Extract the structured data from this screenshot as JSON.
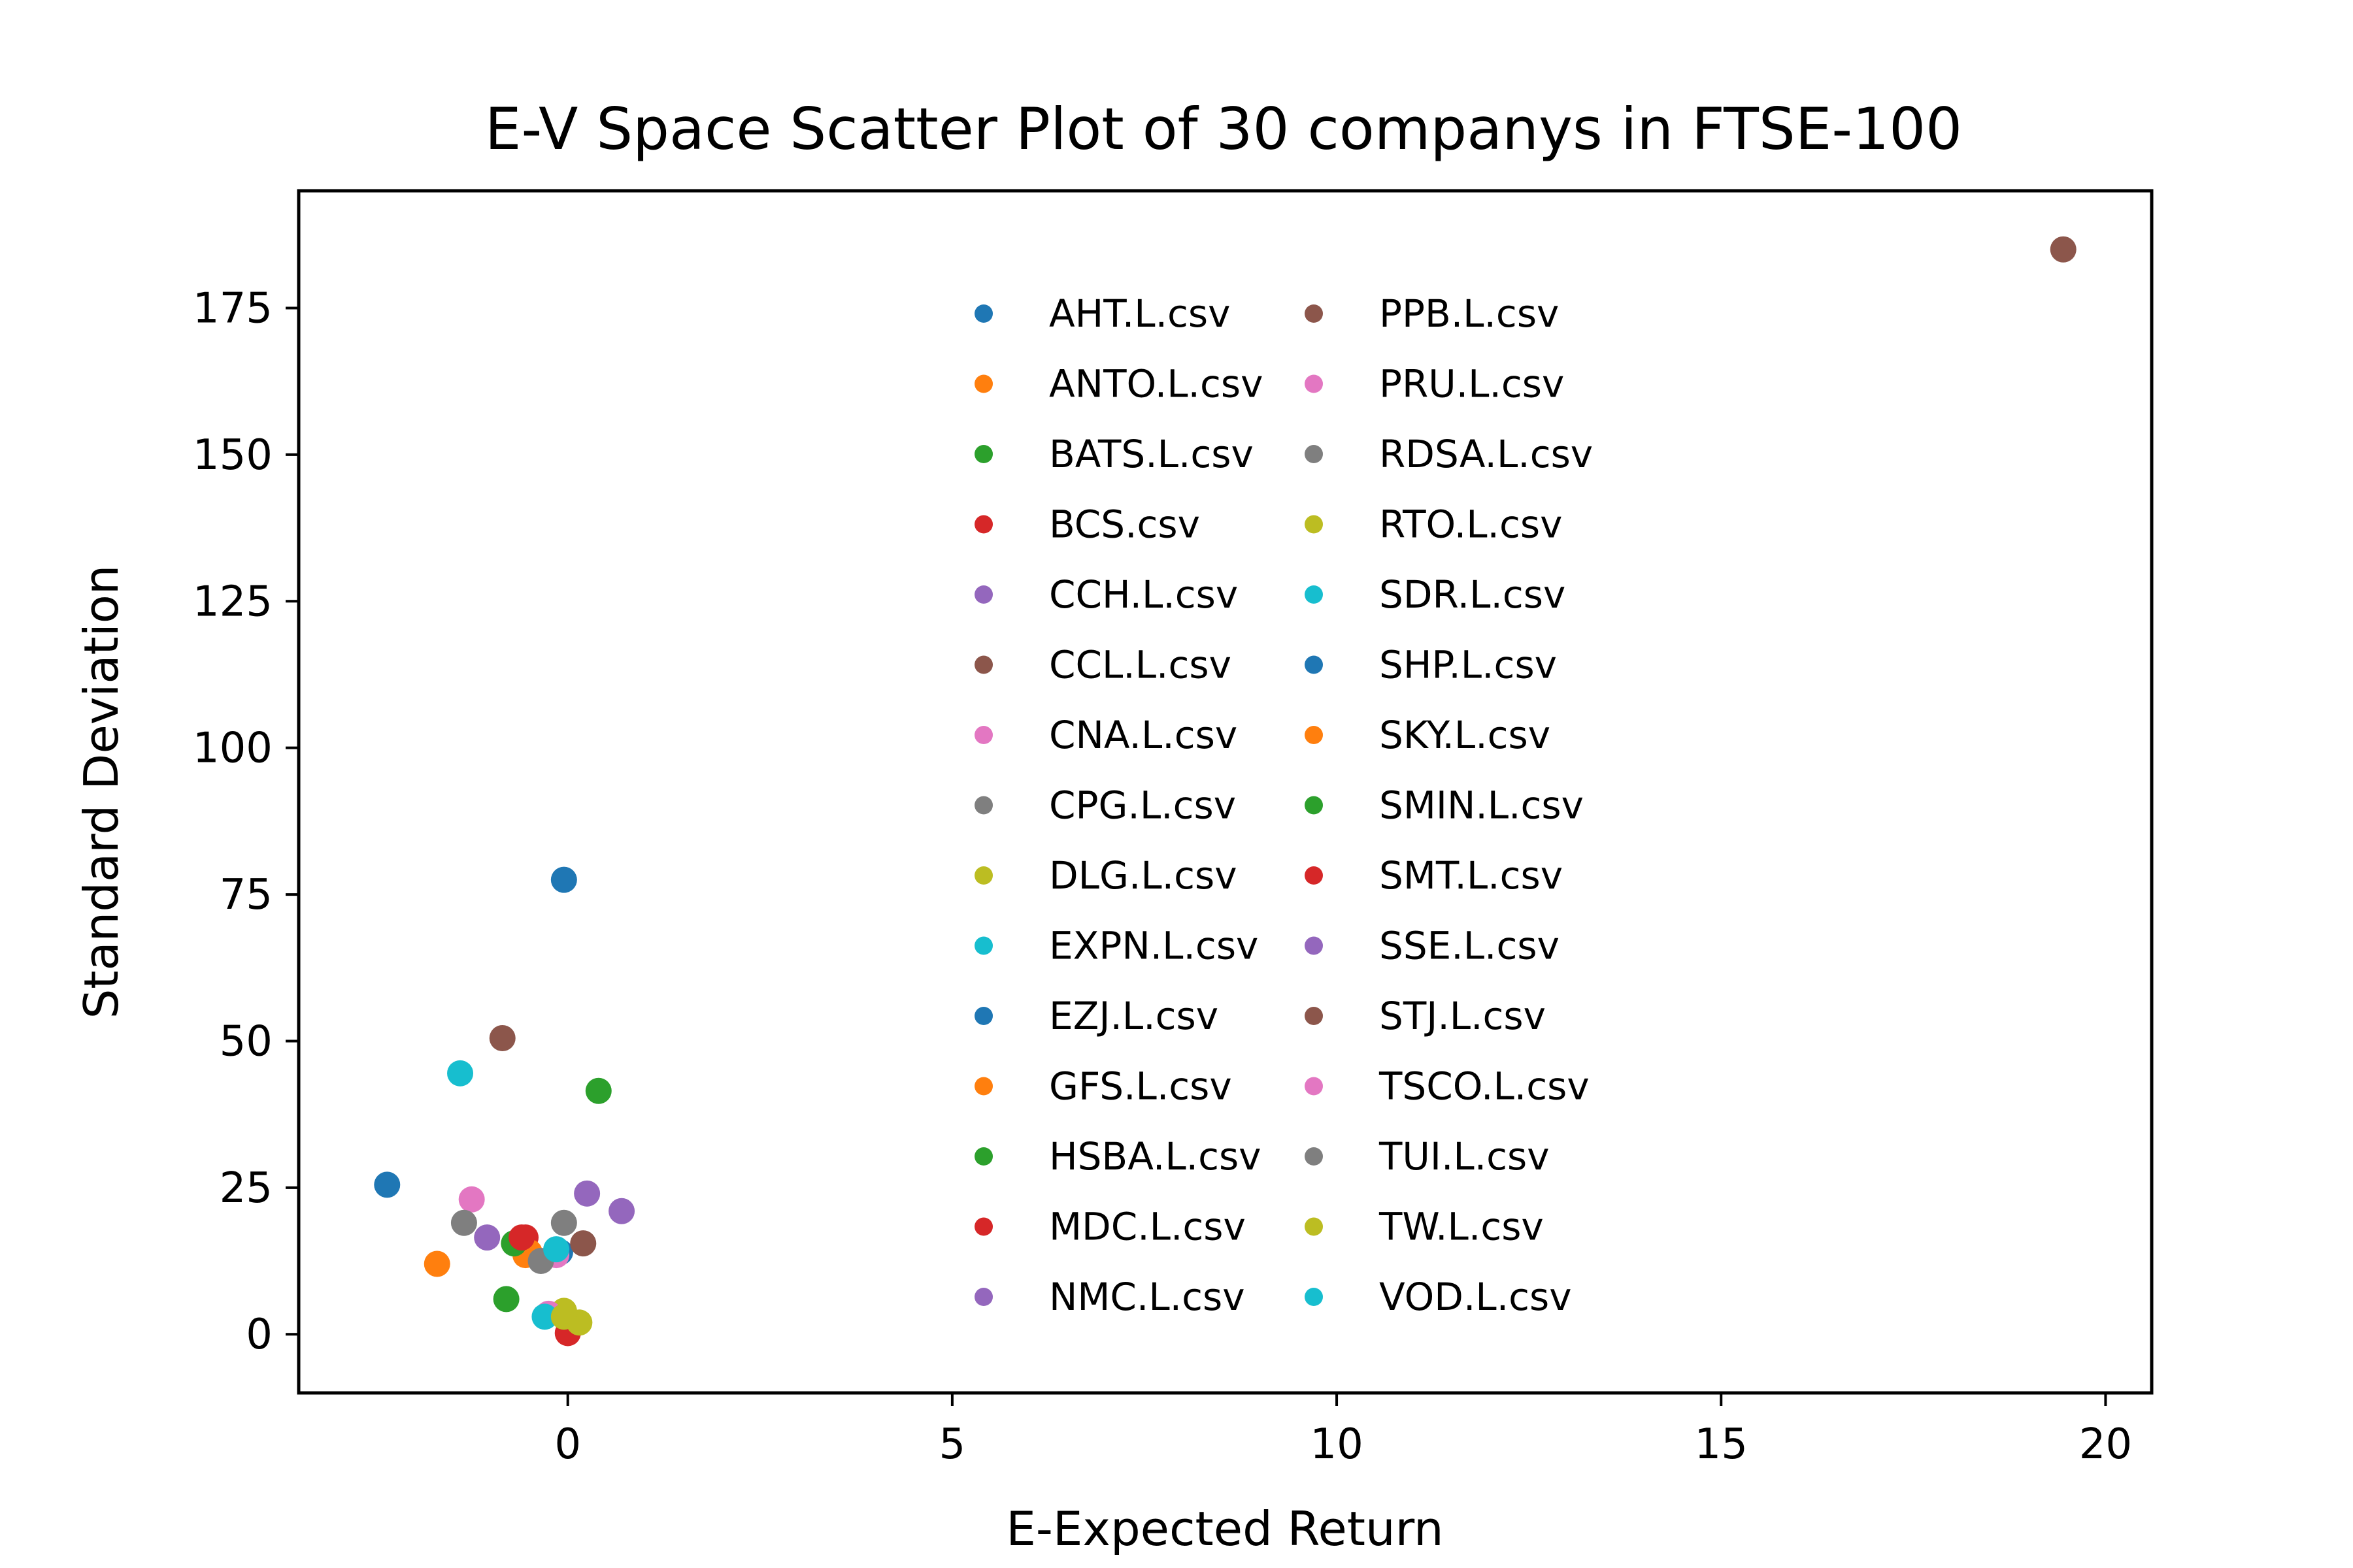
{
  "chart_data": {
    "type": "scatter",
    "title": "E-V Space Scatter Plot of 30 companys in FTSE-100",
    "xlabel": "E-Expected Return",
    "ylabel": "Standard Deviation",
    "xlim": [
      -3.5,
      20.6
    ],
    "ylim": [
      -10,
      195
    ],
    "xticks": [
      0,
      5,
      10,
      15,
      20
    ],
    "yticks": [
      0,
      25,
      50,
      75,
      100,
      125,
      150,
      175
    ],
    "grid": false,
    "legend_position": "upper-center",
    "series": [
      {
        "name": "AHT.L.csv",
        "color": "#1f77b4",
        "x": -2.35,
        "y": 25.5
      },
      {
        "name": "ANTO.L.csv",
        "color": "#ff7f0e",
        "x": -1.7,
        "y": 12.0
      },
      {
        "name": "BATS.L.csv",
        "color": "#2ca02c",
        "x": 0.4,
        "y": 41.5
      },
      {
        "name": "BCS.csv",
        "color": "#d62728",
        "x": 0.0,
        "y": 0.2
      },
      {
        "name": "CCH.L.csv",
        "color": "#9467bd",
        "x": 0.25,
        "y": 24.0
      },
      {
        "name": "CCL.L.csv",
        "color": "#8c564b",
        "x": -0.85,
        "y": 50.5
      },
      {
        "name": "CNA.L.csv",
        "color": "#e377c2",
        "x": -1.25,
        "y": 23.0
      },
      {
        "name": "CPG.L.csv",
        "color": "#7f7f7f",
        "x": -1.35,
        "y": 19.0
      },
      {
        "name": "DLG.L.csv",
        "color": "#bcbd22",
        "x": -0.05,
        "y": 4.0
      },
      {
        "name": "EXPN.L.csv",
        "color": "#17becf",
        "x": -1.4,
        "y": 44.5
      },
      {
        "name": "EZJ.L.csv",
        "color": "#1f77b4",
        "x": -0.05,
        "y": 77.5
      },
      {
        "name": "GFS.L.csv",
        "color": "#ff7f0e",
        "x": -0.55,
        "y": 13.5
      },
      {
        "name": "HSBA.L.csv",
        "color": "#2ca02c",
        "x": -0.8,
        "y": 6.0
      },
      {
        "name": "MDC.L.csv",
        "color": "#d62728",
        "x": -0.55,
        "y": 16.5
      },
      {
        "name": "NMC.L.csv",
        "color": "#9467bd",
        "x": -1.05,
        "y": 16.5
      },
      {
        "name": "PPB.L.csv",
        "color": "#8c564b",
        "x": 19.45,
        "y": 185.0
      },
      {
        "name": "PRU.L.csv",
        "color": "#e377c2",
        "x": -0.25,
        "y": 3.5
      },
      {
        "name": "RDSA.L.csv",
        "color": "#7f7f7f",
        "x": -0.05,
        "y": 19.0
      },
      {
        "name": "RTO.L.csv",
        "color": "#bcbd22",
        "x": 0.15,
        "y": 2.0
      },
      {
        "name": "SDR.L.csv",
        "color": "#17becf",
        "x": -0.3,
        "y": 3.0
      },
      {
        "name": "SHP.L.csv",
        "color": "#1f77b4",
        "x": -0.1,
        "y": 14.0
      },
      {
        "name": "SKY.L.csv",
        "color": "#ff7f0e",
        "x": -0.5,
        "y": 14.0
      },
      {
        "name": "SMIN.L.csv",
        "color": "#2ca02c",
        "x": -0.7,
        "y": 15.5
      },
      {
        "name": "SMT.L.csv",
        "color": "#d62728",
        "x": -0.6,
        "y": 16.5
      },
      {
        "name": "SSE.L.csv",
        "color": "#9467bd",
        "x": 0.7,
        "y": 21.0
      },
      {
        "name": "STJ.L.csv",
        "color": "#8c564b",
        "x": 0.2,
        "y": 15.5
      },
      {
        "name": "TSCO.L.csv",
        "color": "#e377c2",
        "x": -0.15,
        "y": 13.5
      },
      {
        "name": "TUI.L.csv",
        "color": "#7f7f7f",
        "x": -0.35,
        "y": 12.5
      },
      {
        "name": "TW.L.csv",
        "color": "#bcbd22",
        "x": -0.05,
        "y": 3.0
      },
      {
        "name": "VOD.L.csv",
        "color": "#17becf",
        "x": -0.15,
        "y": 14.5
      }
    ]
  }
}
